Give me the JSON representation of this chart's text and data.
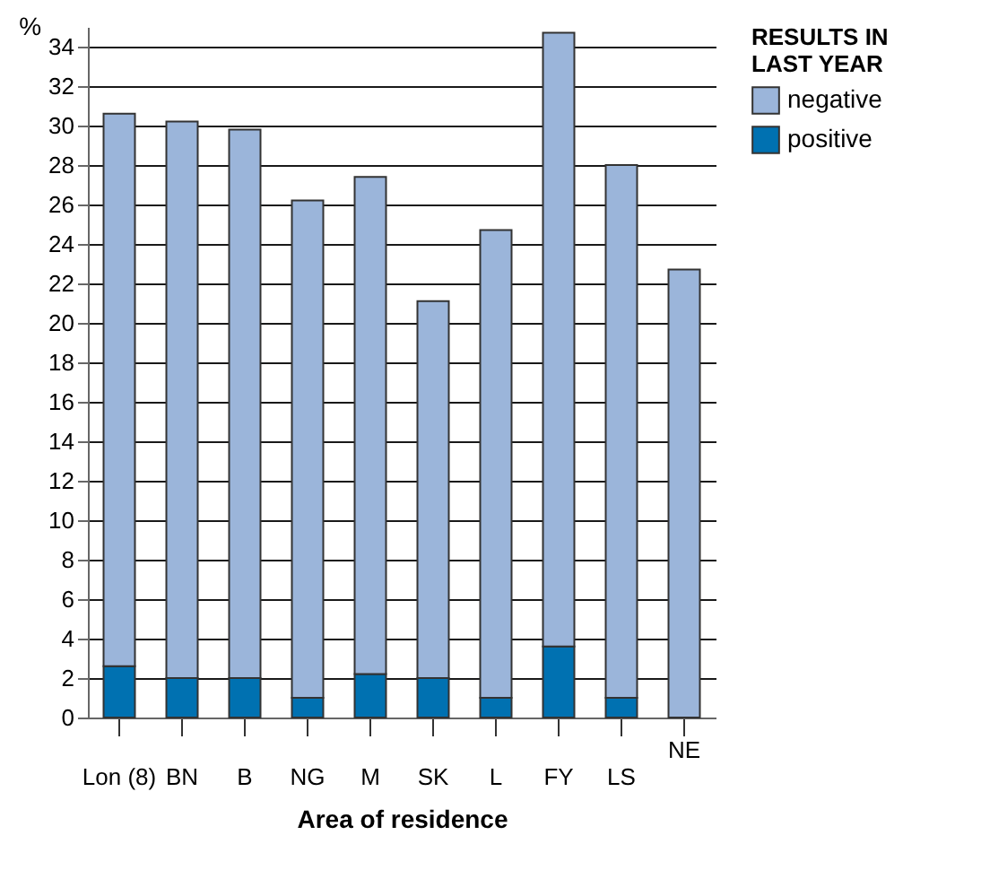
{
  "chart_data": {
    "type": "bar",
    "stacked": true,
    "xlabel": "Area of residence",
    "ylabel": "%",
    "legend_title": "RESULTS IN LAST YEAR",
    "legend": "right",
    "categories": [
      "Lon (8)",
      "BN",
      "B",
      "NG",
      "M",
      "SK",
      "L",
      "FY",
      "LS",
      "NE"
    ],
    "series": [
      {
        "name": "positive",
        "color": "#0071b1",
        "values": [
          2.6,
          2.0,
          2.0,
          1.0,
          2.2,
          2.0,
          1.0,
          3.6,
          1.0,
          0
        ]
      },
      {
        "name": "negative",
        "color": "#9bb5da",
        "values": [
          28.0,
          28.2,
          27.8,
          25.2,
          25.2,
          19.1,
          23.7,
          31.1,
          27.0,
          22.7
        ]
      }
    ],
    "ylim": [
      0,
      35
    ],
    "yticks": [
      0,
      2,
      4,
      6,
      8,
      10,
      12,
      14,
      16,
      18,
      20,
      22,
      24,
      26,
      28,
      30,
      32,
      34
    ],
    "grid": "y"
  }
}
